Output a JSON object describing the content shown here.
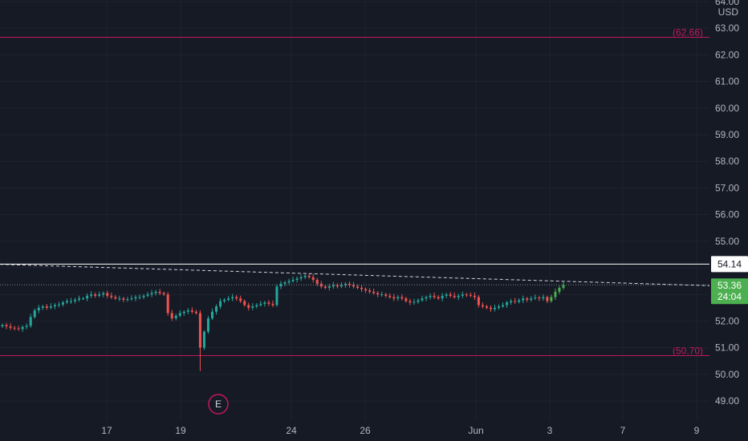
{
  "chart_data": {
    "type": "candlestick",
    "currency": "USD",
    "y_range": [
      48.5,
      64.0
    ],
    "y_ticks": [
      "64.00",
      "63.00",
      "62.00",
      "61.00",
      "60.00",
      "59.00",
      "58.00",
      "57.00",
      "56.00",
      "55.00",
      "54.00",
      "53.00",
      "52.00",
      "51.00",
      "50.00",
      "49.00"
    ],
    "x_ticks": [
      "17",
      "19",
      "24",
      "26",
      "Jun",
      "3",
      "7",
      "9"
    ],
    "levels": [
      {
        "label": "(62.66)",
        "value": 62.66,
        "color": "#c2185b"
      },
      {
        "label": "(50.70)",
        "value": 50.7,
        "color": "#c2185b"
      }
    ],
    "price_line": {
      "label": "54.14",
      "value": 54.14
    },
    "last_price": {
      "label": "53.36",
      "countdown": "24:04",
      "value": 53.36
    },
    "trendline": {
      "from": 54.13,
      "to": 53.33
    },
    "earnings_marker": {
      "label": "E"
    },
    "colors": {
      "up": "#26a69a",
      "up_bright": "#4caf50",
      "down": "#ef5350",
      "background": "#161a25",
      "level": "#c2185b"
    },
    "series_close": [
      51.85,
      51.8,
      51.75,
      51.72,
      51.7,
      51.78,
      51.82,
      52.15,
      52.4,
      52.5,
      52.55,
      52.5,
      52.55,
      52.6,
      52.62,
      52.7,
      52.75,
      52.75,
      52.8,
      52.85,
      52.85,
      52.95,
      53.0,
      52.95,
      53.0,
      53.05,
      52.95,
      52.9,
      52.85,
      52.85,
      52.8,
      52.82,
      52.85,
      52.9,
      52.9,
      52.95,
      53.0,
      53.05,
      53.1,
      53.05,
      53.0,
      52.3,
      52.1,
      52.2,
      52.3,
      52.35,
      52.4,
      52.35,
      52.3,
      51.0,
      51.6,
      52.1,
      52.35,
      52.55,
      52.75,
      52.8,
      52.85,
      52.9,
      52.85,
      52.75,
      52.6,
      52.5,
      52.55,
      52.6,
      52.65,
      52.7,
      52.65,
      52.6,
      53.3,
      53.4,
      53.45,
      53.5,
      53.55,
      53.6,
      53.65,
      53.7,
      53.65,
      53.55,
      53.4,
      53.3,
      53.25,
      53.3,
      53.35,
      53.3,
      53.35,
      53.4,
      53.35,
      53.3,
      53.25,
      53.2,
      53.15,
      53.1,
      53.05,
      53.0,
      53.0,
      52.95,
      52.9,
      52.85,
      52.9,
      52.85,
      52.75,
      52.7,
      52.72,
      52.78,
      52.85,
      52.9,
      52.95,
      52.9,
      52.85,
      52.95,
      53.0,
      52.95,
      52.9,
      52.95,
      53.0,
      52.98,
      52.95,
      52.9,
      52.6,
      52.55,
      52.5,
      52.45,
      52.5,
      52.55,
      52.6,
      52.7,
      52.75,
      52.72,
      52.78,
      52.85,
      52.8,
      52.85,
      52.88,
      52.85,
      52.9,
      52.75,
      52.9,
      53.1,
      53.25,
      53.36
    ]
  }
}
